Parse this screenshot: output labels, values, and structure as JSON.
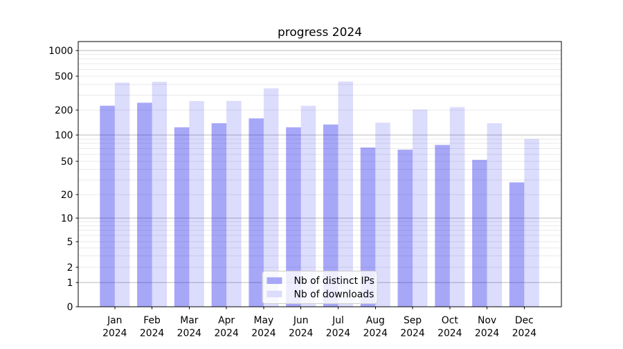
{
  "figure": {
    "title": "progress 2024"
  },
  "chart_data": {
    "type": "bar",
    "title": "progress 2024",
    "xlabel": "",
    "ylabel": "",
    "yscale": "symlog",
    "grid": true,
    "legend_position": "lower center",
    "ylim": [
      0,
      1000
    ],
    "yticks": [
      0,
      1,
      2,
      5,
      10,
      20,
      50,
      100,
      200,
      500,
      1000
    ],
    "categories": [
      "Jan",
      "Feb",
      "Mar",
      "Apr",
      "May",
      "Jun",
      "Jul",
      "Aug",
      "Sep",
      "Oct",
      "Nov",
      "Dec"
    ],
    "x_year_label": "2024",
    "series": [
      {
        "name": "Nb of distinct IPs",
        "color": "#a7a7f8",
        "values": [
          225,
          244,
          124,
          139,
          159,
          124,
          134,
          72,
          68,
          77,
          52,
          28
        ]
      },
      {
        "name": "Nb of downloads",
        "color": "#dcdcfc",
        "values": [
          420,
          430,
          255,
          256,
          360,
          225,
          433,
          141,
          203,
          217,
          139,
          90
        ]
      }
    ]
  },
  "colors": {
    "background": "#ffffff",
    "bar_base": "#0a0aeb",
    "bar_alpha_distinct_ips": 0.36,
    "bar_alpha_downloads": 0.14,
    "bar_distinct_ips_hex": "#a7a7f8",
    "bar_downloads_hex": "#dcdcfc",
    "grid_major": "#bababa",
    "grid_minor": "#e9e9e9",
    "axis_line": "#000000",
    "tick_text": "#000000",
    "legend_border": "#cccccc",
    "legend_background": "#ffffff"
  }
}
